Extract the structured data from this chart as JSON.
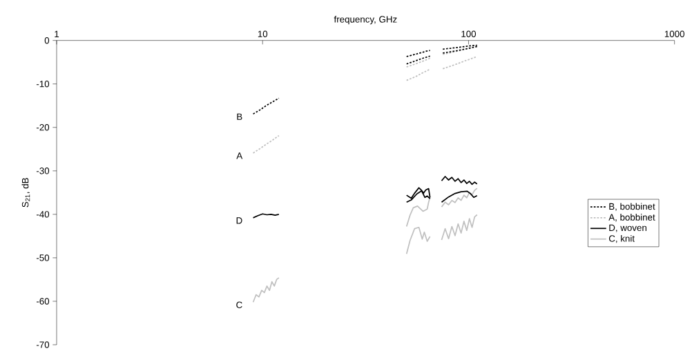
{
  "chart_data": {
    "type": "line",
    "xlabel": "frequency, GHz",
    "ylabel": "S$_{21}$, dB",
    "log": "x",
    "xlim": [
      1,
      1000
    ],
    "xticks": [
      1,
      10,
      100,
      1000
    ],
    "ylim": [
      -70,
      0
    ],
    "yticks": [
      -70,
      -60,
      -50,
      -40,
      -30,
      -20,
      -10,
      0
    ],
    "grid": false,
    "legend": "right",
    "marker": "none",
    "annotations": [
      "B",
      "A",
      "D",
      "C"
    ],
    "series": [
      {
        "name": "B, bobbinet",
        "color": "#000000",
        "line_style": "dotted",
        "x": [
          9,
          9.7,
          10.4,
          11.2,
          12,
          null,
          50,
          53,
          56,
          59,
          62,
          65,
          null,
          50,
          53,
          56,
          59,
          62,
          65,
          null,
          75,
          82,
          89,
          96,
          103,
          110,
          null,
          75,
          82,
          89,
          96,
          103,
          110
        ],
        "values": [
          -16.9,
          -16.0,
          -15.0,
          -14.1,
          -13.3,
          null,
          -3.7,
          -3.4,
          -3.1,
          -2.8,
          -2.5,
          -2.3,
          null,
          -5.4,
          -5.0,
          -4.6,
          -4.2,
          -3.9,
          -3.6,
          null,
          -2.0,
          -1.8,
          -1.6,
          -1.4,
          -1.2,
          -1.1,
          null,
          -2.9,
          -2.6,
          -2.3,
          -2.0,
          -1.7,
          -1.4
        ]
      },
      {
        "name": "A, bobbinet",
        "color": "#bfbfbf",
        "line_style": "dotted",
        "x": [
          9,
          9.7,
          10.4,
          11.2,
          12,
          null,
          50,
          53,
          56,
          59,
          62,
          65,
          null,
          50,
          53,
          56,
          59,
          62,
          65,
          null,
          75,
          82,
          89,
          96,
          103,
          110,
          null,
          75,
          82,
          89,
          96,
          103,
          110
        ],
        "values": [
          -25.9,
          -24.9,
          -23.9,
          -22.9,
          -21.9,
          null,
          -6.1,
          -5.7,
          -5.3,
          -4.9,
          -4.5,
          -4.1,
          null,
          -9.2,
          -8.7,
          -8.2,
          -7.6,
          -7.1,
          -6.6,
          null,
          -3.2,
          -2.8,
          -2.4,
          -2.0,
          -1.6,
          -1.2,
          null,
          -6.5,
          -5.9,
          -5.3,
          -4.7,
          -4.2,
          -3.7
        ]
      },
      {
        "name": "D, woven",
        "color": "#000000",
        "line_style": "solid",
        "x": [
          9,
          9.5,
          10,
          10.5,
          11,
          11.5,
          12,
          null,
          50,
          52.7,
          55,
          57.4,
          59.2,
          60.5,
          62,
          64,
          65,
          null,
          50,
          52.7,
          56.1,
          59.2,
          61.4,
          63,
          65,
          null,
          74,
          77,
          80,
          83,
          86,
          89,
          92,
          95,
          98,
          101,
          104,
          107,
          110,
          null,
          74,
          80,
          86,
          92,
          98.6,
          102,
          106,
          110
        ],
        "values": [
          -40.8,
          -40.3,
          -39.9,
          -40.1,
          -40.0,
          -40.2,
          -40.0,
          null,
          -35.6,
          -36.3,
          -35.0,
          -33.9,
          -34.5,
          -35.1,
          -34.4,
          -34.1,
          -36.1,
          null,
          -37.2,
          -36.7,
          -35.3,
          -34.6,
          -36.1,
          -35.8,
          -36.4,
          null,
          -32.3,
          -31.3,
          -32.1,
          -31.5,
          -32.4,
          -31.8,
          -32.7,
          -32.1,
          -32.9,
          -32.4,
          -33.1,
          -32.6,
          -33.0,
          null,
          -37.2,
          -36.0,
          -35.2,
          -34.8,
          -34.7,
          -35.2,
          -36.1,
          -35.7
        ]
      },
      {
        "name": "C, knit",
        "color": "#c0c0c0",
        "line_style": "solid",
        "x": [
          9,
          9.3,
          9.6,
          9.9,
          10.2,
          10.5,
          10.8,
          11.1,
          11.4,
          11.7,
          12,
          null,
          50,
          52,
          53.9,
          56.5,
          60.1,
          63,
          64,
          65,
          null,
          50,
          52,
          54.7,
          57.4,
          59.6,
          61,
          63,
          65,
          null,
          74,
          77,
          80,
          83,
          86,
          89,
          92,
          95,
          98,
          101,
          104,
          107,
          110,
          null,
          74,
          77,
          80,
          83,
          86,
          89,
          92,
          95,
          98,
          101,
          104,
          107,
          110
        ],
        "values": [
          -60.2,
          -58.5,
          -59.0,
          -57.5,
          -58.0,
          -56.5,
          -57.5,
          -55.5,
          -56.5,
          -55.0,
          -54.6,
          null,
          -42.8,
          -40.2,
          -38.5,
          -38.1,
          -39.3,
          -38.8,
          -37.2,
          -36.1,
          null,
          -49.1,
          -46.0,
          -43.3,
          -43.0,
          -45.7,
          -44.1,
          -46.2,
          -45.1,
          null,
          -38.3,
          -37.2,
          -37.8,
          -36.8,
          -37.3,
          -36.2,
          -36.8,
          -35.6,
          -36.2,
          -35.0,
          -35.5,
          -34.5,
          -34.0,
          null,
          -45.9,
          -43.3,
          -45.6,
          -42.8,
          -44.9,
          -42.2,
          -44.3,
          -41.6,
          -43.7,
          -41.0,
          -43.0,
          -40.6,
          -40.1
        ]
      }
    ]
  }
}
